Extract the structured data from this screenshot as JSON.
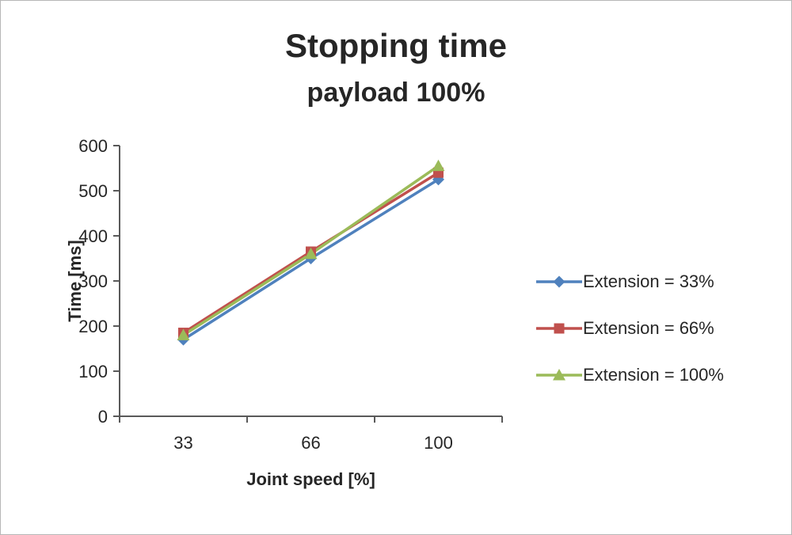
{
  "chart": {
    "title": "Stopping time",
    "subtitle": "payload 100%"
  },
  "chart_data": {
    "type": "line",
    "title": "Stopping time",
    "subtitle": "payload 100%",
    "xlabel": "Joint speed [%]",
    "ylabel": "Time [ms]",
    "categories": [
      "33",
      "66",
      "100"
    ],
    "ylim": [
      0,
      600
    ],
    "ytick_interval": 100,
    "grid": false,
    "legend_position": "right",
    "series": [
      {
        "name": "Extension = 33%",
        "marker": "diamond",
        "color": "#4F81BD",
        "values": [
          170,
          350,
          525
        ]
      },
      {
        "name": "Extension = 66%",
        "marker": "square",
        "color": "#C0504D",
        "values": [
          185,
          365,
          540
        ]
      },
      {
        "name": "Extension = 100%",
        "marker": "triangle",
        "color": "#9BBB59",
        "values": [
          180,
          360,
          555
        ]
      }
    ]
  }
}
